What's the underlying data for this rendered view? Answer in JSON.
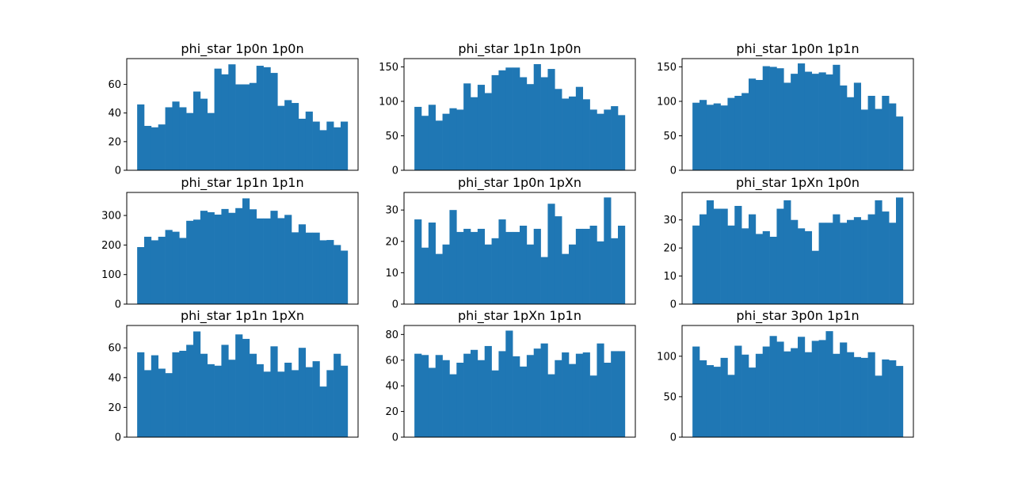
{
  "colors": {
    "bar": "#1f77b4",
    "axis": "#000000",
    "background": "#ffffff"
  },
  "chart_data": [
    {
      "type": "bar",
      "title": "phi_star 1p0n 1p0n",
      "xlabel": "",
      "ylabel": "",
      "yticks": [
        0,
        20,
        40,
        60
      ],
      "ylim": [
        0,
        78
      ],
      "grid": false,
      "values": [
        46,
        31,
        30,
        32,
        44,
        48,
        44,
        40,
        55,
        50,
        40,
        71,
        67,
        74,
        60,
        60,
        61,
        73,
        72,
        68,
        45,
        49,
        47,
        36,
        41,
        34,
        28,
        34,
        30,
        34
      ]
    },
    {
      "type": "bar",
      "title": "phi_star 1p1n 1p0n",
      "xlabel": "",
      "ylabel": "",
      "yticks": [
        0,
        50,
        100,
        150
      ],
      "ylim": [
        0,
        162
      ],
      "grid": false,
      "values": [
        92,
        79,
        95,
        72,
        82,
        90,
        88,
        126,
        106,
        124,
        112,
        138,
        145,
        149,
        149,
        135,
        125,
        154,
        135,
        147,
        118,
        104,
        107,
        121,
        103,
        88,
        82,
        88,
        93,
        80
      ]
    },
    {
      "type": "bar",
      "title": "phi_star 1p0n 1p1n",
      "xlabel": "",
      "ylabel": "",
      "yticks": [
        0,
        50,
        100,
        150
      ],
      "ylim": [
        0,
        162
      ],
      "grid": false,
      "values": [
        98,
        102,
        95,
        97,
        94,
        105,
        108,
        112,
        133,
        131,
        151,
        150,
        148,
        127,
        140,
        155,
        143,
        140,
        142,
        139,
        153,
        123,
        106,
        127,
        88,
        108,
        89,
        108,
        97,
        78
      ]
    },
    {
      "type": "bar",
      "title": "phi_star 1p1n 1p1n",
      "xlabel": "",
      "ylabel": "",
      "yticks": [
        0,
        100,
        200,
        300
      ],
      "ylim": [
        0,
        378
      ],
      "grid": false,
      "values": [
        193,
        228,
        216,
        228,
        251,
        245,
        224,
        282,
        286,
        316,
        311,
        303,
        322,
        309,
        325,
        358,
        321,
        290,
        290,
        316,
        291,
        302,
        243,
        270,
        242,
        242,
        216,
        217,
        200,
        181
      ]
    },
    {
      "type": "bar",
      "title": "phi_star 1p0n 1pXn",
      "xlabel": "",
      "ylabel": "",
      "yticks": [
        0,
        10,
        20,
        30
      ],
      "ylim": [
        0,
        35.6
      ],
      "grid": false,
      "values": [
        27,
        18,
        26,
        16,
        19,
        30,
        23,
        24,
        23,
        24,
        19,
        21,
        27,
        23,
        23,
        25,
        19,
        24,
        15,
        32,
        28,
        16,
        19,
        24,
        24,
        25,
        20,
        34,
        21,
        25
      ]
    },
    {
      "type": "bar",
      "title": "phi_star 1pXn 1p0n",
      "xlabel": "",
      "ylabel": "",
      "yticks": [
        0,
        10,
        20,
        30
      ],
      "ylim": [
        0,
        39.8
      ],
      "grid": false,
      "values": [
        28,
        32,
        37,
        34,
        34,
        28,
        35,
        27,
        32,
        25,
        26,
        24,
        34,
        37,
        30,
        27,
        26,
        19,
        29,
        29,
        32,
        29,
        30,
        31,
        30,
        32,
        37,
        33,
        29,
        38
      ]
    },
    {
      "type": "bar",
      "title": "phi_star 1p1n 1pXn",
      "xlabel": "",
      "ylabel": "",
      "yticks": [
        0,
        20,
        40,
        60
      ],
      "ylim": [
        0,
        75
      ],
      "grid": false,
      "values": [
        57,
        45,
        55,
        46,
        43,
        57,
        58,
        62,
        71,
        56,
        49,
        48,
        62,
        52,
        69,
        66,
        56,
        49,
        44,
        61,
        44,
        50,
        45,
        60,
        47,
        51,
        34,
        45,
        56,
        48
      ]
    },
    {
      "type": "bar",
      "title": "phi_star 1pXn 1p1n",
      "xlabel": "",
      "ylabel": "",
      "yticks": [
        0,
        20,
        40,
        60,
        80
      ],
      "ylim": [
        0,
        87
      ],
      "grid": false,
      "values": [
        65,
        64,
        54,
        64,
        60,
        49,
        58,
        65,
        68,
        60,
        71,
        52,
        67,
        83,
        63,
        55,
        64,
        69,
        73,
        49,
        60,
        66,
        57,
        65,
        66,
        48,
        73,
        58,
        67,
        67
      ]
    },
    {
      "type": "bar",
      "title": "phi_star 3p0n 1p1n",
      "xlabel": "",
      "ylabel": "",
      "yticks": [
        0,
        50,
        100
      ],
      "ylim": [
        0,
        138
      ],
      "grid": false,
      "values": [
        112,
        95,
        89,
        87,
        98,
        77,
        113,
        102,
        86,
        103,
        112,
        125,
        118,
        106,
        110,
        124,
        105,
        119,
        120,
        131,
        103,
        117,
        105,
        99,
        98,
        105,
        76,
        96,
        95,
        88
      ]
    }
  ]
}
